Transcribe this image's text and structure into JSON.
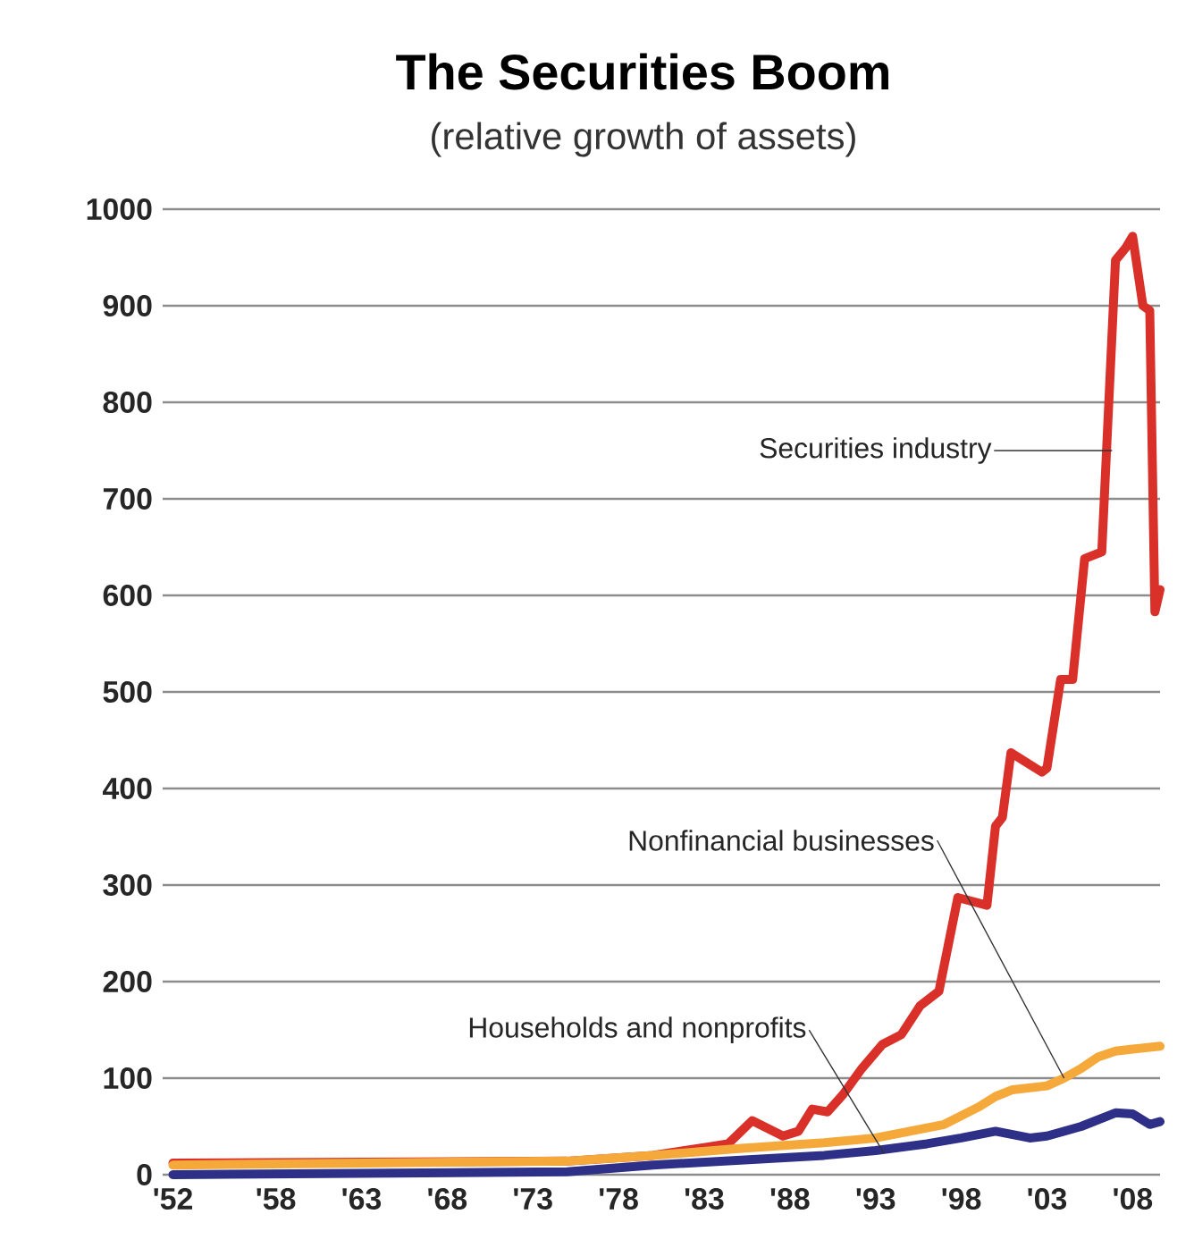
{
  "chart_data": {
    "type": "line",
    "title": "The Securities Boom",
    "subtitle": "(relative growth of assets)",
    "x": [
      1952,
      1975,
      1980,
      1983,
      1984.4,
      1985.8,
      1987.6,
      1988.5,
      1989.3,
      1990.2,
      1991.1,
      1992.2,
      1993.4,
      1994.5,
      1995.6,
      1996.7,
      1997.8,
      1999.5,
      2000,
      2000.4,
      2000.9,
      2002.7,
      2003.0,
      2003.8,
      2004.5,
      2005.2,
      2006.2,
      2007.0,
      2007.6,
      2008.0,
      2008.6,
      2009.0,
      2009.3,
      2009.6
    ],
    "series": [
      {
        "color": "#d9302a",
        "values": [
          12,
          14,
          20,
          28,
          32,
          56,
          40,
          45,
          68,
          65,
          83,
          110,
          135,
          145,
          175,
          190,
          287,
          279,
          361,
          370,
          437,
          417,
          421,
          513,
          513,
          638,
          645,
          947,
          960,
          972,
          900,
          895,
          583,
          606
        ]
      },
      {
        "x": [
          1952,
          1975,
          1980,
          1985,
          1990,
          1993,
          1995,
          1997,
          1999,
          2000,
          2001,
          2003,
          2004,
          2005,
          2006,
          2007,
          2008,
          2009.6
        ],
        "color": "#f5a93a",
        "values": [
          10,
          14,
          20,
          27,
          33,
          38,
          45,
          52,
          70,
          81,
          88,
          92,
          100,
          110,
          122,
          128,
          130,
          133
        ]
      },
      {
        "x": [
          1952,
          1975,
          1980,
          1985,
          1990,
          1993,
          1996,
          1998,
          2000,
          2002,
          2003,
          2005,
          2007,
          2008,
          2009,
          2009.6
        ],
        "color": "#2e2f87",
        "values": [
          0,
          3,
          10,
          15,
          20,
          25,
          32,
          38,
          45,
          38,
          40,
          50,
          64,
          63,
          52,
          55
        ]
      }
    ],
    "xlim": [
      1951.4,
      2009.6
    ],
    "ylim": [
      0,
      1000
    ],
    "xticks": [
      {
        "value": 1952,
        "label": "'52"
      },
      {
        "value": 1958,
        "label": "'58"
      },
      {
        "value": 1963,
        "label": "'63"
      },
      {
        "value": 1968,
        "label": "'68"
      },
      {
        "value": 1973,
        "label": "'73"
      },
      {
        "value": 1978,
        "label": "'78"
      },
      {
        "value": 1983,
        "label": "'83"
      },
      {
        "value": 1988,
        "label": "'88"
      },
      {
        "value": 1993,
        "label": "'93"
      },
      {
        "value": 1998,
        "label": "'98"
      },
      {
        "value": 2003,
        "label": "'03"
      },
      {
        "value": 2008,
        "label": "'08"
      }
    ],
    "yticks": [
      0,
      100,
      200,
      300,
      400,
      500,
      600,
      700,
      800,
      900,
      1000
    ],
    "grid": "y",
    "line_style": "solid",
    "marker": "none",
    "annotations": [
      {
        "text": "Securities industry",
        "x": 2006.8,
        "y": 750
      },
      {
        "text": "Nonfinancial businesses",
        "x": 2004,
        "y": 100
      },
      {
        "text": "Households and nonprofits",
        "x": 1993.5,
        "y": 22
      }
    ]
  }
}
